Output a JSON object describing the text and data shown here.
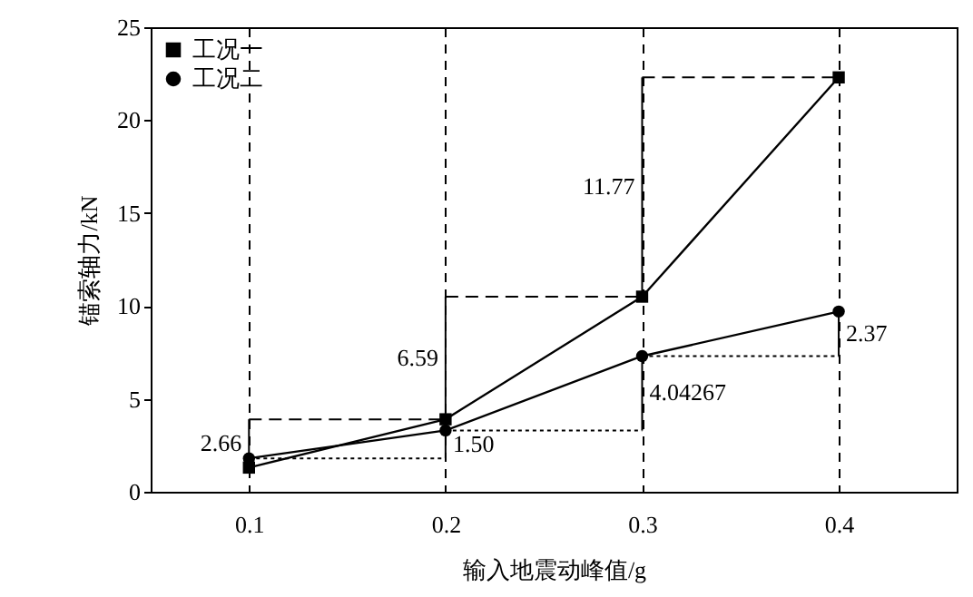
{
  "chart_data": {
    "type": "line",
    "xlabel": "输入地震动峰值/g",
    "ylabel": "锚索轴力/kN",
    "x": [
      0.1,
      0.2,
      0.3,
      0.4
    ],
    "series": [
      {
        "name": "工况一",
        "color": "#000000",
        "marker": "square",
        "values": [
          1.3,
          3.9,
          10.5,
          22.3
        ]
      },
      {
        "name": "工况二",
        "color": "#000000",
        "marker": "circle",
        "values": [
          1.8,
          3.3,
          7.3,
          9.7
        ]
      }
    ],
    "xlim": [
      0.05,
      0.46
    ],
    "xticks": [
      0.1,
      0.2,
      0.3,
      0.4
    ],
    "ylim": [
      0,
      25
    ],
    "yticks": [
      0,
      5,
      10,
      15,
      20,
      25
    ],
    "grid": "x",
    "legend": "top left",
    "line_style": "solid",
    "annotations": [
      {
        "text": "2.66",
        "x": 0.1,
        "y": 1.3
      },
      {
        "text": "6.59",
        "x": 0.2,
        "y": 3.9
      },
      "11.77",
      {
        "text": "1.50",
        "x": 0.2,
        "y": 3.3
      },
      {
        "text": "4.04267",
        "x": 0.3,
        "y": 7.3
      },
      {
        "text": "2.37",
        "x": 0.4,
        "y": 9.7
      }
    ]
  }
}
